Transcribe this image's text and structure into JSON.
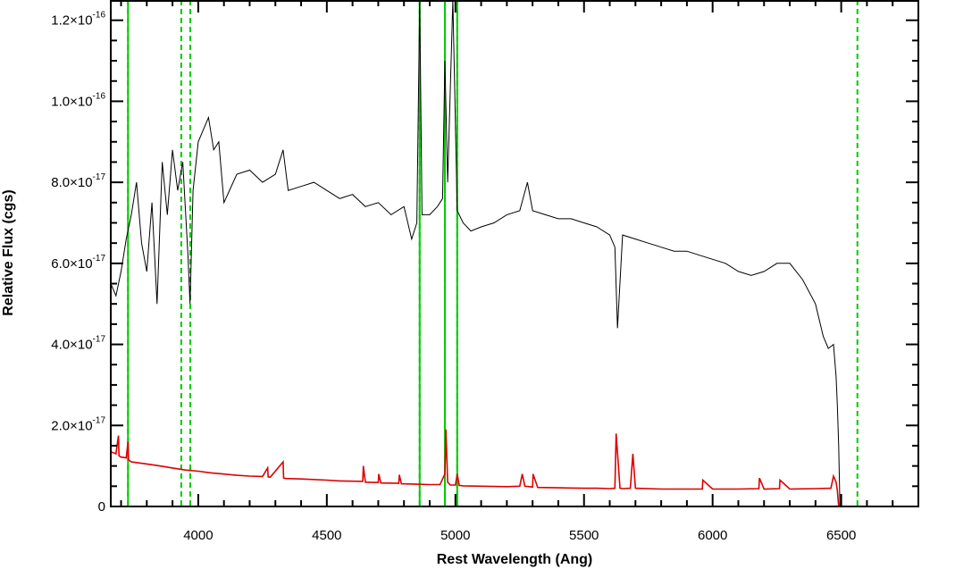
{
  "chart_data": {
    "type": "line",
    "title": "",
    "xlabel": "Rest Wavelength (Ang)",
    "ylabel": "Relative Flux (cgs)",
    "xlim": [
      3660,
      6800
    ],
    "ylim": [
      0,
      1.25e-16
    ],
    "grid": false,
    "legend": "none",
    "x_ticks": [
      {
        "value": 4000,
        "label": "4000"
      },
      {
        "value": 4500,
        "label": "4500"
      },
      {
        "value": 5000,
        "label": "5000"
      },
      {
        "value": 5500,
        "label": "5500"
      },
      {
        "value": 6000,
        "label": "6000"
      },
      {
        "value": 6500,
        "label": "6500"
      }
    ],
    "y_ticks": [
      {
        "value": 0,
        "mant": "0",
        "exp": ""
      },
      {
        "value": 2e-17,
        "mant": "2.0×10",
        "exp": "-17"
      },
      {
        "value": 4e-17,
        "mant": "4.0×10",
        "exp": "-17"
      },
      {
        "value": 6e-17,
        "mant": "6.0×10",
        "exp": "-17"
      },
      {
        "value": 8e-17,
        "mant": "8.0×10",
        "exp": "-17"
      },
      {
        "value": 1e-16,
        "mant": "1.0×10",
        "exp": "-16"
      },
      {
        "value": 1.2e-16,
        "mant": "1.2×10",
        "exp": "-16"
      }
    ],
    "x_minor_step": 100,
    "y_minor_step": 5e-18,
    "vertical_lines": [
      {
        "x": 3727,
        "style": "solid",
        "color": "#00cc00"
      },
      {
        "x": 3727,
        "style": "dashed",
        "color": "#00cc00"
      },
      {
        "x": 3934,
        "style": "dashed",
        "color": "#00cc00"
      },
      {
        "x": 3969,
        "style": "dashed",
        "color": "#00cc00"
      },
      {
        "x": 4861,
        "style": "solid",
        "color": "#00cc00"
      },
      {
        "x": 4861,
        "style": "dashed",
        "color": "#00cc00"
      },
      {
        "x": 4959,
        "style": "solid",
        "color": "#00cc00"
      },
      {
        "x": 4959,
        "style": "dashed",
        "color": "#00cc00"
      },
      {
        "x": 5007,
        "style": "solid",
        "color": "#00cc00"
      },
      {
        "x": 5007,
        "style": "dashed",
        "color": "#00cc00"
      },
      {
        "x": 6563,
        "style": "dashed",
        "color": "#00cc00"
      }
    ],
    "series": [
      {
        "color": "#000000",
        "x": [
          3660,
          3680,
          3700,
          3720,
          3740,
          3760,
          3780,
          3800,
          3820,
          3840,
          3860,
          3880,
          3900,
          3920,
          3940,
          3960,
          3968,
          3980,
          4000,
          4020,
          4040,
          4060,
          4080,
          4100,
          4150,
          4200,
          4250,
          4300,
          4330,
          4350,
          4400,
          4450,
          4500,
          4550,
          4600,
          4650,
          4700,
          4750,
          4800,
          4830,
          4850,
          4861,
          4870,
          4900,
          4930,
          4950,
          4959,
          4970,
          4990,
          5007,
          5030,
          5060,
          5100,
          5150,
          5200,
          5250,
          5280,
          5300,
          5350,
          5400,
          5450,
          5500,
          5550,
          5600,
          5620,
          5630,
          5650,
          5700,
          5750,
          5800,
          5850,
          5900,
          5950,
          6000,
          6050,
          6100,
          6150,
          6200,
          6250,
          6300,
          6350,
          6400,
          6430,
          6450,
          6470,
          6480,
          6485,
          6490,
          6495,
          6800
        ],
        "y": [
          5.5e-17,
          5.2e-17,
          5.8e-17,
          6.6e-17,
          7.2e-17,
          8e-17,
          6.5e-17,
          5.8e-17,
          7.5e-17,
          5e-17,
          8.5e-17,
          7.2e-17,
          8.8e-17,
          7.8e-17,
          8.5e-17,
          6.2e-17,
          5e-17,
          7.8e-17,
          9e-17,
          9.3e-17,
          9.6e-17,
          8.8e-17,
          9e-17,
          7.5e-17,
          8.2e-17,
          8.3e-17,
          8e-17,
          8.2e-17,
          8.8e-17,
          7.8e-17,
          7.9e-17,
          8e-17,
          7.8e-17,
          7.6e-17,
          7.7e-17,
          7.4e-17,
          7.5e-17,
          7.2e-17,
          7.4e-17,
          6.6e-17,
          7e-17,
          1.25e-16,
          7.2e-17,
          7.2e-17,
          7.4e-17,
          7.6e-17,
          1.1e-16,
          8e-17,
          1.25e-16,
          7.3e-17,
          7e-17,
          6.8e-17,
          6.9e-17,
          7e-17,
          7.2e-17,
          7.3e-17,
          8e-17,
          7.3e-17,
          7.2e-17,
          7.1e-17,
          7.1e-17,
          7e-17,
          6.9e-17,
          6.7e-17,
          6.4e-17,
          4.4e-17,
          6.7e-17,
          6.6e-17,
          6.5e-17,
          6.4e-17,
          6.3e-17,
          6.3e-17,
          6.2e-17,
          6.1e-17,
          6e-17,
          5.8e-17,
          5.7e-17,
          5.8e-17,
          6e-17,
          6e-17,
          5.6e-17,
          5e-17,
          4.2e-17,
          3.9e-17,
          4e-17,
          3.2e-17,
          2.5e-17,
          1.5e-17,
          0,
          0
        ]
      },
      {
        "color": "#dd0000",
        "x": [
          3660,
          3680,
          3690,
          3692,
          3700,
          3720,
          3727,
          3729,
          3740,
          3800,
          3850,
          3900,
          3950,
          4000,
          4050,
          4100,
          4150,
          4200,
          4250,
          4270,
          4272,
          4280,
          4330,
          4332,
          4340,
          4400,
          4500,
          4550,
          4640,
          4642,
          4650,
          4700,
          4702,
          4710,
          4780,
          4782,
          4790,
          4850,
          4900,
          4940,
          4959,
          4963,
          4970,
          4980,
          5000,
          5007,
          5015,
          5030,
          5100,
          5200,
          5250,
          5260,
          5270,
          5300,
          5302,
          5320,
          5400,
          5500,
          5550,
          5600,
          5620,
          5625,
          5640,
          5650,
          5680,
          5690,
          5700,
          5800,
          5900,
          5960,
          5962,
          6000,
          6100,
          6180,
          6182,
          6200,
          6260,
          6262,
          6300,
          6400,
          6460,
          6470,
          6480,
          6485,
          6490,
          6800
        ],
        "y": [
          1.35e-17,
          1.3e-17,
          1.75e-17,
          1.25e-17,
          1.22e-17,
          1.2e-17,
          1.6e-17,
          1.15e-17,
          1.1e-17,
          1.05e-17,
          1e-17,
          9.5e-18,
          9e-18,
          8.7e-18,
          8.3e-18,
          8e-18,
          7.7e-18,
          7.5e-18,
          7.4e-18,
          9.5e-18,
          7.3e-18,
          7.2e-18,
          1.1e-17,
          7e-18,
          6.9e-18,
          6.8e-18,
          6.5e-18,
          6.3e-18,
          6.2e-18,
          1e-17,
          6e-18,
          5.9e-18,
          8e-18,
          5.8e-18,
          5.7e-18,
          7.8e-18,
          5.6e-18,
          5.5e-18,
          5.4e-18,
          5.4e-18,
          8e-18,
          1.9e-17,
          6e-18,
          5.3e-18,
          5.3e-18,
          8e-18,
          5.2e-18,
          5.1e-18,
          5e-18,
          4.9e-18,
          5e-18,
          8e-18,
          5e-18,
          4.8e-18,
          8e-18,
          4.7e-18,
          4.6e-18,
          4.5e-18,
          4.5e-18,
          4.4e-18,
          4.5e-18,
          1.8e-17,
          4.5e-18,
          4.4e-18,
          4.5e-18,
          1.3e-17,
          4.5e-18,
          4.3e-18,
          4.3e-18,
          4.3e-18,
          6.5e-18,
          4.3e-18,
          4.3e-18,
          4.4e-18,
          7e-18,
          4.3e-18,
          4.4e-18,
          6.5e-18,
          4.3e-18,
          4.4e-18,
          4.5e-18,
          7.5e-18,
          6e-18,
          4e-18,
          0,
          0
        ]
      }
    ]
  }
}
